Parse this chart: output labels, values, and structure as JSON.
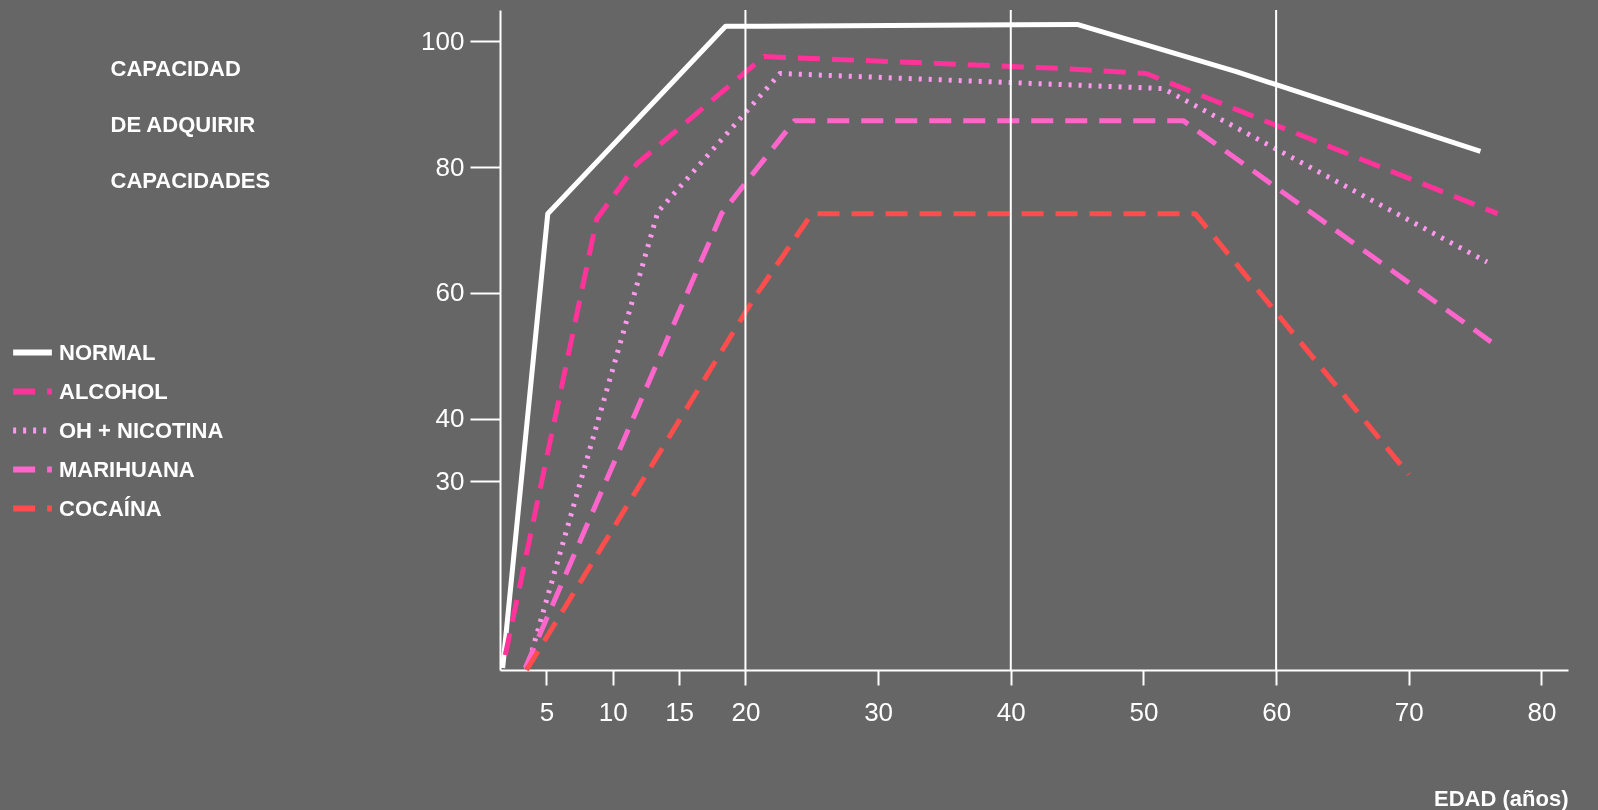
{
  "chart_data": {
    "type": "line",
    "ylabel": "CAPACIDAD DE ADQUIRIR CAPACIDADES",
    "xlabel": "EDAD (años)",
    "xlim": [
      1.5,
      82
    ],
    "ylim": [
      0,
      105
    ],
    "xticks": [
      5,
      10,
      15,
      20,
      30,
      40,
      50,
      60,
      70,
      80
    ],
    "yticks": [
      30,
      40,
      60,
      80,
      100
    ],
    "grid": false,
    "legend": "left",
    "marker": "none",
    "ref_lines": [
      {
        "axis": "x",
        "value": 20,
        "color": "#ffffff"
      },
      {
        "axis": "x",
        "value": 40,
        "color": "#ffffff"
      },
      {
        "axis": "x",
        "value": 60,
        "color": "#ffffff"
      }
    ],
    "series": [
      {
        "name": "NORMAL",
        "color": "#ffffff",
        "line_style": "solid",
        "x": [
          1.7,
          5.1,
          18.5,
          45,
          57,
          75.4
        ],
        "values": [
          0.3,
          72.6,
          102.4,
          102.7,
          95.2,
          82.5
        ]
      },
      {
        "name": "ALCOHOL",
        "color": "#ff3399",
        "line_style": "dashed",
        "x": [
          1.9,
          8.8,
          11.8,
          21.4,
          43.8,
          50.2,
          76.7
        ],
        "values": [
          2.4,
          71.8,
          80.5,
          97.6,
          95.7,
          94.9,
          72.6
        ]
      },
      {
        "name": "OH + NICOTINA",
        "color": "#ff99ee",
        "line_style": "dotted",
        "x": [
          3.5,
          13.4,
          22.6,
          51.5,
          75.9
        ],
        "values": [
          0,
          72.9,
          94.9,
          92.5,
          64.9
        ]
      },
      {
        "name": "MARIHUANA",
        "color": "#ff66cc",
        "line_style": "dashed",
        "x": [
          3.4,
          18.2,
          23.7,
          53.0,
          76.2
        ],
        "values": [
          0.3,
          72.6,
          87.4,
          87.4,
          52.2
        ]
      },
      {
        "name": "COCAÍNA",
        "color": "#ff4d4d",
        "line_style": "dashed",
        "x": [
          3.5,
          20.6,
          25.0,
          53.9,
          70
        ],
        "values": [
          0,
          59,
          72.6,
          72.6,
          31.1
        ]
      }
    ]
  }
}
